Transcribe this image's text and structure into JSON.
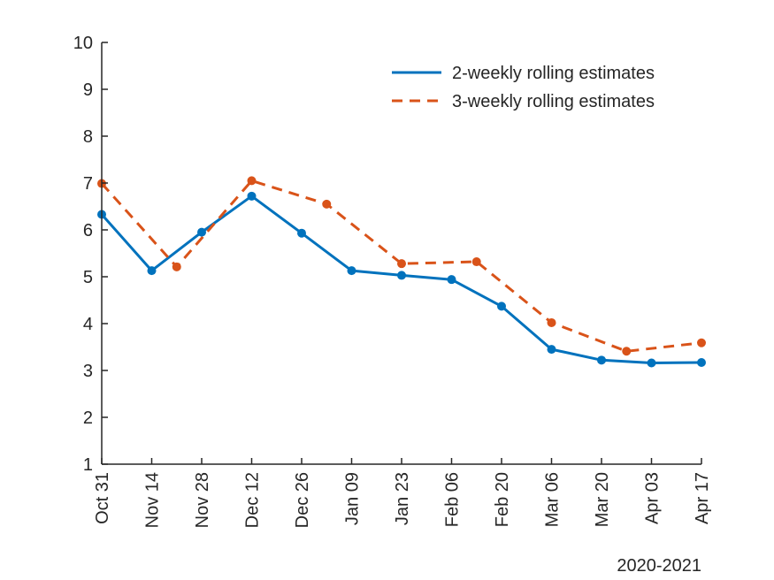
{
  "chart_data": {
    "type": "line",
    "categories": [
      "Oct 31",
      "Nov 14",
      "Nov 28",
      "Dec 12",
      "Dec 26",
      "Jan 09",
      "Jan 23",
      "Feb 06",
      "Feb 20",
      "Mar 06",
      "Mar 20",
      "Apr 03",
      "Apr 17"
    ],
    "x_range": [
      0,
      12
    ],
    "ylim": [
      1,
      10
    ],
    "yticks": [
      "1",
      "2",
      "3",
      "4",
      "5",
      "6",
      "7",
      "8",
      "9",
      "10"
    ],
    "xlabel": "2020-2021",
    "ylabel": "",
    "grid": false,
    "legend_position": "top-right",
    "series": [
      {
        "name": "2-weekly rolling estimates",
        "color": "#0072BD",
        "style": "solid",
        "x": [
          0,
          1,
          2,
          3,
          4,
          5,
          6,
          7,
          8,
          9,
          10,
          11,
          12
        ],
        "y": [
          6.33,
          5.13,
          5.95,
          6.72,
          5.93,
          5.13,
          5.03,
          4.94,
          4.37,
          3.45,
          3.22,
          3.16,
          3.17
        ]
      },
      {
        "name": "3-weekly rolling estimates",
        "color": "#D95319",
        "style": "dashed",
        "x": [
          0,
          1.5,
          3,
          4.5,
          6,
          7.5,
          9,
          10.5,
          12
        ],
        "y": [
          6.99,
          5.21,
          7.05,
          6.55,
          5.28,
          5.32,
          4.02,
          3.41,
          3.59
        ]
      }
    ]
  }
}
